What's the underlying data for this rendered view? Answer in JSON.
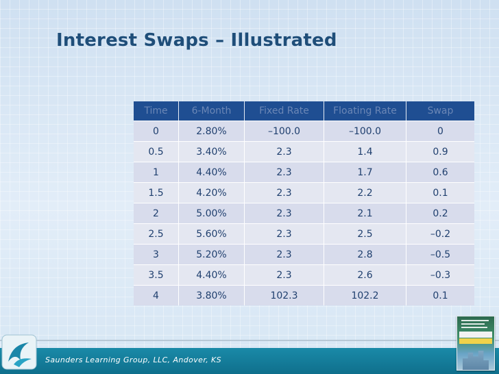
{
  "slide": {
    "title": "Interest Swaps – Illustrated",
    "footer": "Saunders Learning Group, LLC, Andover, KS"
  },
  "table": {
    "headers": [
      "Time",
      "6-Month",
      "Fixed Rate",
      "Floating Rate",
      "Swap"
    ],
    "rows": [
      [
        "0",
        "2.80%",
        "–100.0",
        "–100.0",
        "0"
      ],
      [
        "0.5",
        "3.40%",
        "2.3",
        "1.4",
        "0.9"
      ],
      [
        "1",
        "4.40%",
        "2.3",
        "1.7",
        "0.6"
      ],
      [
        "1.5",
        "4.20%",
        "2.3",
        "2.2",
        "0.1"
      ],
      [
        "2",
        "5.00%",
        "2.3",
        "2.1",
        "0.2"
      ],
      [
        "2.5",
        "5.60%",
        "2.3",
        "2.5",
        "–0.2"
      ],
      [
        "3",
        "5.20%",
        "2.3",
        "2.8",
        "–0.5"
      ],
      [
        "3.5",
        "4.40%",
        "2.3",
        "2.6",
        "–0.3"
      ],
      [
        "4",
        "3.80%",
        "102.3",
        "102.2",
        "0.1"
      ]
    ]
  },
  "icons": {
    "logo": "swirl-logo-icon",
    "book": "book-cover-thumbnail"
  },
  "colors": {
    "title": "#1f4e79",
    "header_bg": "#1f4e92",
    "footer_bg": "#12809e"
  }
}
